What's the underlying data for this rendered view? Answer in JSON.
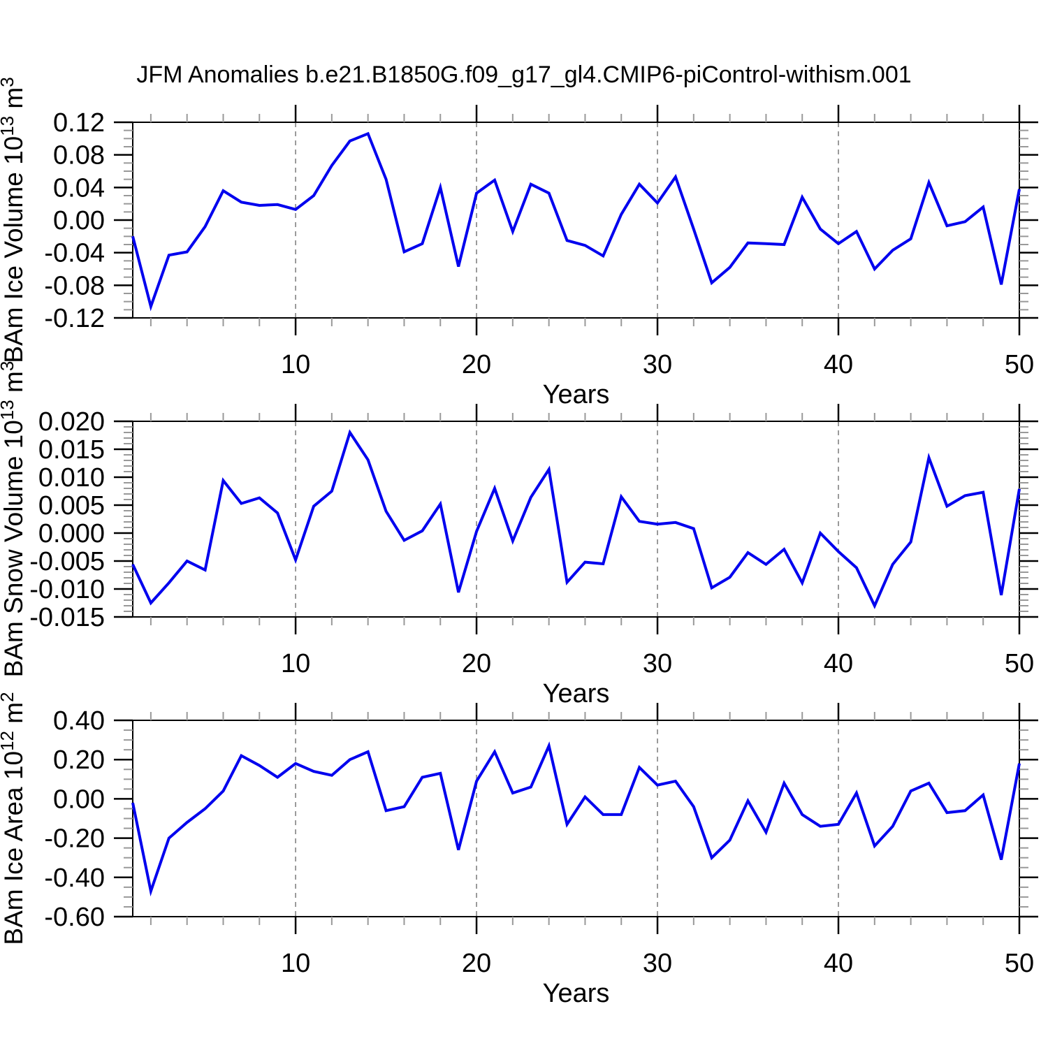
{
  "title": "JFM Anomalies b.e21.B1850G.f09_g17_gl4.CMIP6-piControl-withism.001",
  "colors": {
    "line": "#0000ee",
    "grid": "#7a7a7a",
    "axis": "#000000",
    "minor_tick": "#999999",
    "background": "#ffffff"
  },
  "x_axis": {
    "label": "Years",
    "min": 1,
    "max": 50,
    "major_tick_values": [
      10,
      20,
      30,
      40,
      50
    ],
    "major_tick_labels": [
      "10",
      "20",
      "30",
      "40",
      "50"
    ],
    "minor_step": 2,
    "gridline_values": [
      10,
      20,
      30,
      40
    ]
  },
  "chart_data": [
    {
      "type": "line",
      "name": "ice-volume",
      "ylabel_parts": [
        {
          "t": "BAm Ice Volume 10"
        },
        {
          "t": "13",
          "sup": true
        },
        {
          "t": " m"
        },
        {
          "t": "3",
          "sup": true
        }
      ],
      "ylabel_plain": "BAm Ice Volume 10^13 m^3",
      "xlabel": "Years",
      "ymin": -0.12,
      "ymax": 0.12,
      "ytick_values": [
        0.12,
        0.08,
        0.04,
        0.0,
        -0.04,
        -0.08,
        -0.12
      ],
      "ytick_labels": [
        "0.12",
        "0.08",
        "0.04",
        "0.00",
        "-0.04",
        "-0.08",
        "-0.12"
      ],
      "yminor_step": 0.01,
      "x": [
        1,
        2,
        3,
        4,
        5,
        6,
        7,
        8,
        9,
        10,
        11,
        12,
        13,
        14,
        15,
        16,
        17,
        18,
        19,
        20,
        21,
        22,
        23,
        24,
        25,
        26,
        27,
        28,
        29,
        30,
        31,
        32,
        33,
        34,
        35,
        36,
        37,
        38,
        39,
        40,
        41,
        42,
        43,
        44,
        45,
        46,
        47,
        48,
        49,
        50
      ],
      "values": [
        -0.02,
        -0.106,
        -0.043,
        -0.039,
        -0.008,
        0.036,
        0.022,
        0.018,
        0.019,
        0.013,
        0.03,
        0.067,
        0.097,
        0.106,
        0.05,
        -0.039,
        -0.029,
        0.04,
        -0.057,
        0.033,
        0.049,
        -0.014,
        0.044,
        0.033,
        -0.025,
        -0.031,
        -0.044,
        0.007,
        0.044,
        0.021,
        0.053,
        -0.011,
        -0.077,
        -0.058,
        -0.028,
        -0.029,
        -0.03,
        0.028,
        -0.011,
        -0.029,
        -0.014,
        -0.06,
        -0.037,
        -0.023,
        0.046,
        -0.007,
        -0.002,
        0.016,
        -0.079,
        0.038
      ]
    },
    {
      "type": "line",
      "name": "snow-volume",
      "ylabel_parts": [
        {
          "t": "BAm Snow Volume 10"
        },
        {
          "t": "13",
          "sup": true
        },
        {
          "t": " m"
        },
        {
          "t": "3",
          "sup": true
        }
      ],
      "ylabel_plain": "BAm Snow Volume 10^13 m^3",
      "xlabel": "Years",
      "ymin": -0.015,
      "ymax": 0.02,
      "ytick_values": [
        0.02,
        0.015,
        0.01,
        0.005,
        0.0,
        -0.005,
        -0.01,
        -0.015
      ],
      "ytick_labels": [
        "0.020",
        "0.015",
        "0.010",
        "0.005",
        "0.000",
        "-0.005",
        "-0.010",
        "-0.015"
      ],
      "yminor_step": 0.001,
      "x": [
        1,
        2,
        3,
        4,
        5,
        6,
        7,
        8,
        9,
        10,
        11,
        12,
        13,
        14,
        15,
        16,
        17,
        18,
        19,
        20,
        21,
        22,
        23,
        24,
        25,
        26,
        27,
        28,
        29,
        30,
        31,
        32,
        33,
        34,
        35,
        36,
        37,
        38,
        39,
        40,
        41,
        42,
        43,
        44,
        45,
        46,
        47,
        48,
        49,
        50
      ],
      "values": [
        -0.0056,
        -0.0125,
        -0.0089,
        -0.005,
        -0.0066,
        0.0094,
        0.0053,
        0.0063,
        0.0036,
        -0.0048,
        0.0048,
        0.0075,
        0.018,
        0.0131,
        0.0039,
        -0.0013,
        0.0004,
        0.0052,
        -0.0106,
        0.0003,
        0.008,
        -0.0014,
        0.0064,
        0.0114,
        -0.0088,
        -0.0052,
        -0.0055,
        0.0065,
        0.0021,
        0.0016,
        0.0019,
        0.0008,
        -0.0098,
        -0.0079,
        -0.0035,
        -0.0056,
        -0.0029,
        -0.0089,
        0.0,
        -0.0033,
        -0.0062,
        -0.013,
        -0.0056,
        -0.0016,
        0.0135,
        0.0048,
        0.0067,
        0.0073,
        -0.0111,
        0.0079
      ]
    },
    {
      "type": "line",
      "name": "ice-area",
      "ylabel_parts": [
        {
          "t": "BAm Ice Area 10"
        },
        {
          "t": "12",
          "sup": true
        },
        {
          "t": " m"
        },
        {
          "t": "2",
          "sup": true
        }
      ],
      "ylabel_plain": "BAm Ice Area 10^12 m^2",
      "xlabel": "Years",
      "ymin": -0.6,
      "ymax": 0.4,
      "ytick_values": [
        0.4,
        0.2,
        0.0,
        -0.2,
        -0.4,
        -0.6
      ],
      "ytick_labels": [
        "0.40",
        "0.20",
        "0.00",
        "-0.20",
        "-0.40",
        "-0.60"
      ],
      "yminor_step": 0.05,
      "x": [
        1,
        2,
        3,
        4,
        5,
        6,
        7,
        8,
        9,
        10,
        11,
        12,
        13,
        14,
        15,
        16,
        17,
        18,
        19,
        20,
        21,
        22,
        23,
        24,
        25,
        26,
        27,
        28,
        29,
        30,
        31,
        32,
        33,
        34,
        35,
        36,
        37,
        38,
        39,
        40,
        41,
        42,
        43,
        44,
        45,
        46,
        47,
        48,
        49,
        50
      ],
      "values": [
        -0.02,
        -0.47,
        -0.2,
        -0.12,
        -0.05,
        0.04,
        0.22,
        0.17,
        0.11,
        0.18,
        0.14,
        0.12,
        0.2,
        0.24,
        -0.06,
        -0.04,
        0.11,
        0.13,
        -0.26,
        0.09,
        0.24,
        0.03,
        0.06,
        0.27,
        -0.13,
        0.01,
        -0.08,
        -0.08,
        0.16,
        0.07,
        0.09,
        -0.04,
        -0.3,
        -0.21,
        -0.01,
        -0.17,
        0.08,
        -0.08,
        -0.14,
        -0.13,
        0.03,
        -0.24,
        -0.14,
        0.04,
        0.08,
        -0.07,
        -0.06,
        0.02,
        -0.31,
        0.18
      ]
    }
  ]
}
